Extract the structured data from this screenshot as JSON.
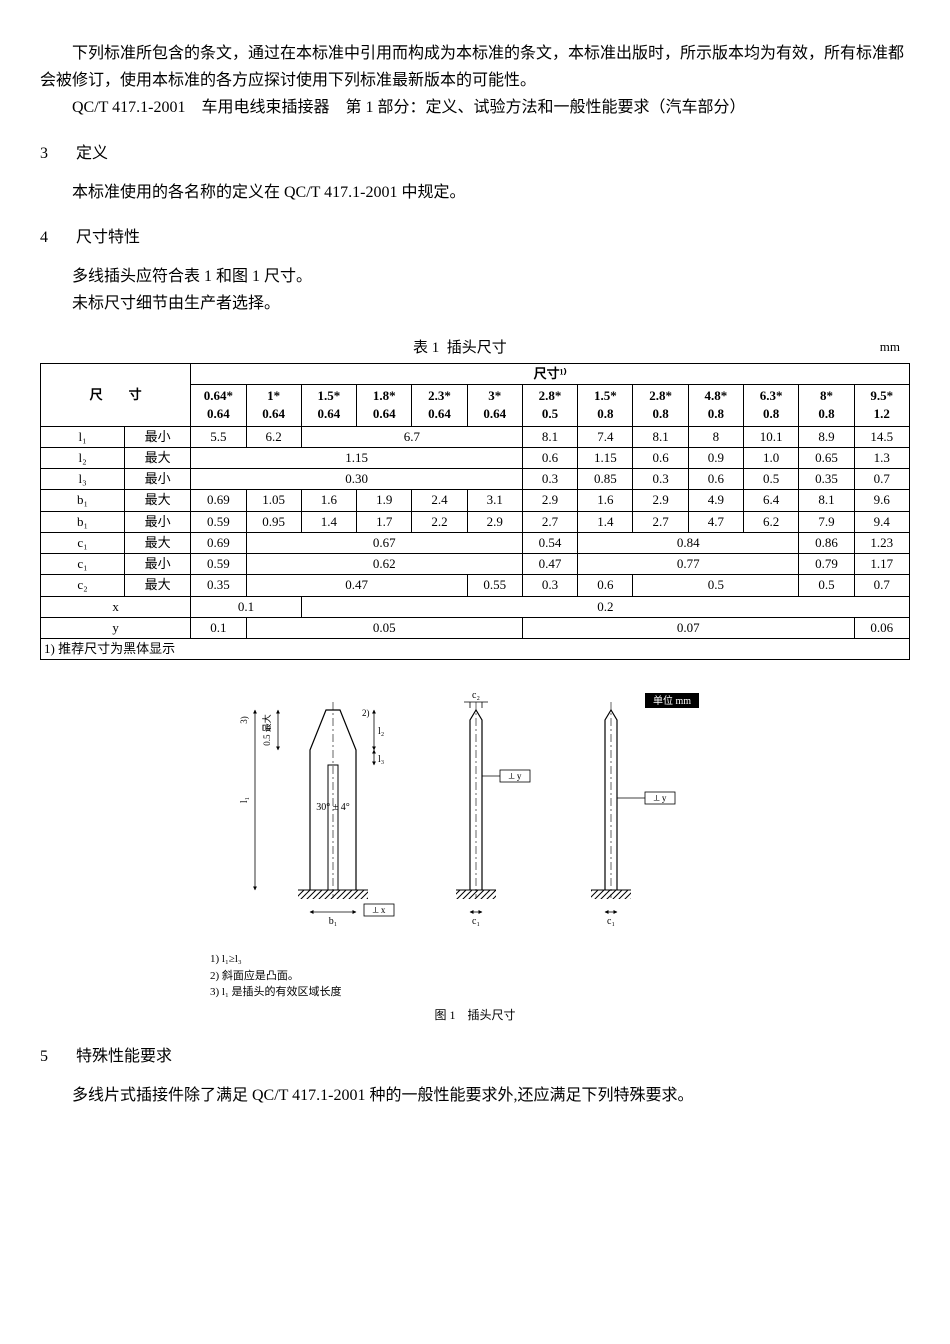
{
  "intro": {
    "p1": "下列标准所包含的条文，通过在本标准中引用而构成为本标准的条文，本标准出版时，所示版本均为有效，所有标准都会被修订，使用本标准的各方应探讨使用下列标准最新版本的可能性。",
    "p2": "QC/T 417.1-2001　车用电线束插接器　第 1 部分：定义、试验方法和一般性能要求（汽车部分）"
  },
  "sec3": {
    "num": "3",
    "title": "定义",
    "body": "本标准使用的各名称的定义在 QC/T 417.1-2001 中规定。"
  },
  "sec4": {
    "num": "4",
    "title": "尺寸特性",
    "line1": "多线插头应符合表 1 和图 1 尺寸。",
    "line2": "未标尺寸细节由生产者选择。"
  },
  "table1": {
    "caption_prefix": "表 1",
    "caption": "插头尺寸",
    "unit": "mm",
    "header_size_label": "尺寸¹⁾",
    "header_left": "尺　　寸",
    "sizes": [
      "0.64*\n0.64",
      "1*\n0.64",
      "1.5*\n0.64",
      "1.8*\n0.64",
      "2.3*\n0.64",
      "3*\n0.64",
      "2.8*\n0.5",
      "1.5*\n0.8",
      "2.8*\n0.8",
      "4.8*\n0.8",
      "6.3*\n0.8",
      "8*\n0.8",
      "9.5*\n1.2"
    ],
    "rows": [
      {
        "sym": "l₁",
        "cond": "最小",
        "cells": [
          [
            "5.5"
          ],
          [
            "6.2"
          ],
          [
            "6.7",
            "6.7",
            "6.7",
            "6.7"
          ],
          [
            "8.1"
          ],
          [
            "7.4"
          ],
          [
            "8.1"
          ],
          [
            "8"
          ],
          [
            "10.1"
          ],
          [
            "8.9"
          ],
          [
            "14.5"
          ]
        ],
        "spans": [
          1,
          1,
          4,
          1,
          1,
          1,
          1,
          1,
          1,
          1
        ]
      },
      {
        "sym": "l₂",
        "cond": "最大",
        "cells": [
          [
            "1.15",
            "1.15",
            "1.15",
            "1.15",
            "1.15",
            "1.15"
          ],
          [
            "0.6"
          ],
          [
            "1.15"
          ],
          [
            "0.6"
          ],
          [
            "0.9"
          ],
          [
            "1.0"
          ],
          [
            "0.65"
          ],
          [
            "1.3"
          ]
        ],
        "spans": [
          6,
          1,
          1,
          1,
          1,
          1,
          1,
          1
        ]
      },
      {
        "sym": "l₃",
        "cond": "最小",
        "cells": [
          [
            "0.30",
            "0.30",
            "0.30",
            "0.30",
            "0.30",
            "0.30"
          ],
          [
            "0.3"
          ],
          [
            "0.85"
          ],
          [
            "0.3"
          ],
          [
            "0.6"
          ],
          [
            "0.5"
          ],
          [
            "0.35"
          ],
          [
            "0.7"
          ]
        ],
        "spans": [
          6,
          1,
          1,
          1,
          1,
          1,
          1,
          1
        ]
      },
      {
        "sym": "b₁",
        "cond": "最大",
        "cells": [
          [
            "0.69"
          ],
          [
            "1.05"
          ],
          [
            "1.6"
          ],
          [
            "1.9"
          ],
          [
            "2.4"
          ],
          [
            "3.1"
          ],
          [
            "2.9"
          ],
          [
            "1.6"
          ],
          [
            "2.9"
          ],
          [
            "4.9"
          ],
          [
            "6.4"
          ],
          [
            "8.1"
          ],
          [
            "9.6"
          ]
        ],
        "spans": [
          1,
          1,
          1,
          1,
          1,
          1,
          1,
          1,
          1,
          1,
          1,
          1,
          1
        ]
      },
      {
        "sym": "b₁",
        "cond": "最小",
        "cells": [
          [
            "0.59"
          ],
          [
            "0.95"
          ],
          [
            "1.4"
          ],
          [
            "1.7"
          ],
          [
            "2.2"
          ],
          [
            "2.9"
          ],
          [
            "2.7"
          ],
          [
            "1.4"
          ],
          [
            "2.7"
          ],
          [
            "4.7"
          ],
          [
            "6.2"
          ],
          [
            "7.9"
          ],
          [
            "9.4"
          ]
        ],
        "spans": [
          1,
          1,
          1,
          1,
          1,
          1,
          1,
          1,
          1,
          1,
          1,
          1,
          1
        ]
      },
      {
        "sym": "c₁",
        "cond": "最大",
        "cells": [
          [
            "0.69"
          ],
          [
            "0.67",
            "0.67",
            "0.67",
            "0.67",
            "0.67"
          ],
          [
            "0.54"
          ],
          [
            "0.84",
            "0.84",
            "0.84",
            "0.84"
          ],
          [
            "0.86"
          ],
          [
            "1.23"
          ]
        ],
        "spans": [
          1,
          5,
          1,
          4,
          1,
          1
        ]
      },
      {
        "sym": "c₁",
        "cond": "最小",
        "cells": [
          [
            "0.59"
          ],
          [
            "0.62",
            "0.62",
            "0.62",
            "0.62",
            "0.62"
          ],
          [
            "0.47"
          ],
          [
            "0.77",
            "0.77",
            "0.77",
            "0.77"
          ],
          [
            "0.79"
          ],
          [
            "1.17"
          ]
        ],
        "spans": [
          1,
          5,
          1,
          4,
          1,
          1
        ]
      },
      {
        "sym": "c₂",
        "cond": "最大",
        "cells": [
          [
            "0.35"
          ],
          [
            "0.47",
            "0.47",
            "0.47",
            "0.47"
          ],
          [
            "0.55"
          ],
          [
            "0.3"
          ],
          [
            "0.6"
          ],
          [
            "0.5",
            "0.5",
            "0.5"
          ],
          [
            "0.5"
          ],
          [
            "0.7"
          ]
        ],
        "spans": [
          1,
          4,
          1,
          1,
          1,
          3,
          1,
          1
        ]
      },
      {
        "sym": "x",
        "cond": "",
        "cells": [
          [
            "0.1",
            "0.1"
          ],
          [
            "0.2",
            "0.2",
            "0.2",
            "0.2",
            "0.2",
            "0.2",
            "0.2",
            "0.2",
            "0.2",
            "0.2",
            "0.2"
          ]
        ],
        "spans": [
          2,
          11
        ]
      },
      {
        "sym": "y",
        "cond": "",
        "cells": [
          [
            "0.1"
          ],
          [
            "0.05",
            "0.05",
            "0.05",
            "0.05",
            "0.05"
          ],
          [
            "0.07",
            "0.07",
            "0.07",
            "0.07",
            "0.07",
            "0.07"
          ],
          [
            "0.06"
          ]
        ],
        "spans": [
          1,
          5,
          6,
          1
        ]
      }
    ],
    "footnote": "1) 推荐尺寸为黑体显示"
  },
  "figure1": {
    "unit_label": "单位 mm",
    "angle_label": "30° ± 4°",
    "dims": {
      "l1": "l₁",
      "l2": "l₂",
      "l3": "l₃",
      "b1": "b₁",
      "c1": "c₁",
      "c2": "c₂",
      "x": "x",
      "y": "y",
      "max": "0.5 最大",
      "n2": "2)",
      "n3": "3)"
    },
    "gd_x": "⟂ x",
    "gd_y": "⟂ y",
    "notes": [
      "1) l₁≥l₃",
      "2) 斜面应是凸面。",
      "3) l₁ 是插头的有效区域长度"
    ],
    "caption": "图 1　插头尺寸",
    "colors": {
      "stroke": "#000",
      "bg": "#fff",
      "unit_bg": "#000",
      "unit_fg": "#fff"
    }
  },
  "sec5": {
    "num": "5",
    "title": "特殊性能要求",
    "body": "多线片式插接件除了满足 QC/T 417.1-2001 种的一般性能要求外,还应满足下列特殊要求。"
  }
}
